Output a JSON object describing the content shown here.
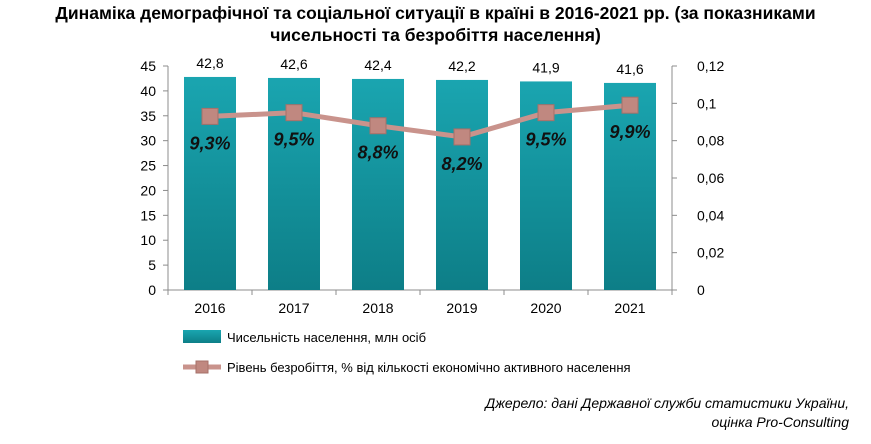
{
  "title_line1": "Динаміка демографічної та соціальної ситуації в країні в 2016-2021 рр. (за показниками",
  "title_line2": "чисельності та безробіття населення)",
  "source_line1": "Джерело: дані Державної служби статистики України,",
  "source_line2": "оцінка Pro-Consulting",
  "colors": {
    "bar": "#1aa5b0",
    "bar_dark": "#0d7e87",
    "line": "#c9938c",
    "marker": "#c08880"
  },
  "chart_data": {
    "type": "bar",
    "categories": [
      "2016",
      "2017",
      "2018",
      "2019",
      "2020",
      "2021"
    ],
    "series": [
      {
        "name": "Чисельність населення, млн осіб",
        "type": "bar",
        "axis": "left",
        "values": [
          42.8,
          42.6,
          42.4,
          42.2,
          41.9,
          41.6
        ],
        "labels": [
          "42,8",
          "42,6",
          "42,4",
          "42,2",
          "41,9",
          "41,6"
        ]
      },
      {
        "name": "Рівень безробіття, % від кількості економічно активного населення",
        "type": "line",
        "axis": "right",
        "values": [
          0.093,
          0.095,
          0.088,
          0.082,
          0.095,
          0.099
        ],
        "labels": [
          "9,3%",
          "9,5%",
          "8,8%",
          "8,2%",
          "9,5%",
          "9,9%"
        ]
      }
    ],
    "y_left": {
      "min": 0,
      "max": 45,
      "ticks": [
        "0",
        "5",
        "10",
        "15",
        "20",
        "25",
        "30",
        "35",
        "40",
        "45"
      ]
    },
    "y_right": {
      "min": 0,
      "max": 0.12,
      "ticks": [
        "0",
        "0,02",
        "0,04",
        "0,06",
        "0,08",
        "0,1",
        "0,12"
      ]
    },
    "grid": false,
    "legend_position": "bottom-left"
  }
}
